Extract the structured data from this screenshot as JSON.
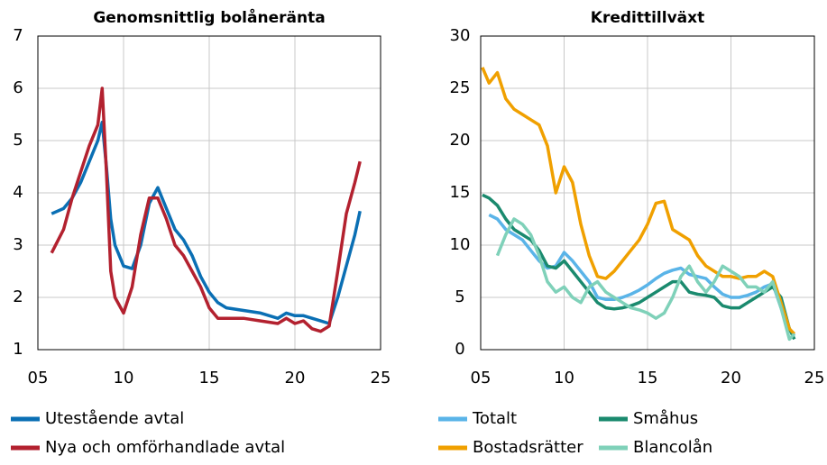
{
  "chart_data": [
    {
      "type": "line",
      "title": "Genomsnittlig bolåneränta",
      "x": [
        5.8,
        6.5,
        7,
        7.5,
        8,
        8.5,
        8.75,
        9,
        9.25,
        9.5,
        10,
        10.5,
        11,
        11.5,
        12,
        12.5,
        13,
        13.5,
        14,
        14.5,
        15,
        15.5,
        16,
        17,
        18,
        19,
        19.5,
        20,
        20.5,
        21,
        21.5,
        22,
        22.5,
        23,
        23.5,
        23.8
      ],
      "series": [
        {
          "name": "Utestående avtal",
          "color": "#0a6fb4",
          "values": [
            3.6,
            3.7,
            3.9,
            4.2,
            4.6,
            5.0,
            5.35,
            4.5,
            3.5,
            3.0,
            2.6,
            2.55,
            3.0,
            3.8,
            4.1,
            3.7,
            3.3,
            3.1,
            2.8,
            2.4,
            2.1,
            1.9,
            1.8,
            1.75,
            1.7,
            1.6,
            1.7,
            1.65,
            1.65,
            1.6,
            1.55,
            1.5,
            2.0,
            2.6,
            3.2,
            3.65
          ]
        },
        {
          "name": "Nya och omförhandlade avtal",
          "color": "#b3212f",
          "values": [
            2.85,
            3.3,
            3.9,
            4.4,
            4.9,
            5.3,
            6.0,
            4.4,
            2.5,
            2.0,
            1.7,
            2.2,
            3.2,
            3.9,
            3.9,
            3.5,
            3.0,
            2.8,
            2.5,
            2.2,
            1.8,
            1.6,
            1.6,
            1.6,
            1.55,
            1.5,
            1.6,
            1.5,
            1.55,
            1.4,
            1.35,
            1.45,
            2.5,
            3.6,
            4.2,
            4.6
          ]
        }
      ],
      "xlim": [
        5,
        25
      ],
      "xticks": [
        {
          "value": 5,
          "label": "05"
        },
        10,
        15,
        20,
        25
      ],
      "ylim": [
        1,
        7
      ],
      "yticks": [
        1,
        2,
        3,
        4,
        5,
        6,
        7
      ],
      "grid": true
    },
    {
      "type": "line",
      "title": "Kredittillväxt",
      "x": [
        5.1,
        5.5,
        6,
        6.5,
        7,
        7.5,
        8,
        8.5,
        9,
        9.5,
        10,
        10.5,
        11,
        11.5,
        12,
        12.5,
        13,
        13.5,
        14,
        14.5,
        15,
        15.5,
        16,
        16.5,
        17,
        17.5,
        18,
        18.5,
        19,
        19.5,
        20,
        20.5,
        21,
        21.5,
        22,
        22.5,
        23,
        23.5,
        23.8
      ],
      "series": [
        {
          "name": "Totalt",
          "color": "#5ab4e8",
          "values": [
            null,
            12.9,
            12.5,
            11.5,
            11,
            10.5,
            9.5,
            8.5,
            7.8,
            8,
            9.3,
            8.5,
            7.5,
            6.5,
            5,
            4.8,
            4.8,
            5,
            5.3,
            5.7,
            6.2,
            6.8,
            7.3,
            7.6,
            7.8,
            7.2,
            7,
            6.8,
            6,
            5.3,
            5,
            5,
            5.2,
            5.5,
            6,
            6.3,
            4,
            2,
            1.3
          ]
        },
        {
          "name": "Småhus",
          "color": "#1a8a6e",
          "values": [
            14.8,
            14.5,
            13.8,
            12.5,
            11.5,
            11,
            10.5,
            9.5,
            8,
            7.8,
            8.5,
            7.5,
            6.5,
            5.5,
            4.5,
            4,
            3.9,
            4,
            4.2,
            4.5,
            5,
            5.5,
            6,
            6.5,
            6.5,
            5.5,
            5.3,
            5.2,
            5,
            4.2,
            4,
            4,
            4.5,
            5,
            5.5,
            6,
            5,
            2,
            1
          ]
        },
        {
          "name": "Bostadsrätter",
          "color": "#f0a000",
          "values": [
            27,
            25.5,
            26.5,
            24,
            23,
            22.5,
            22,
            21.5,
            19.5,
            15,
            17.5,
            16,
            12,
            9,
            7,
            6.8,
            7.5,
            8.5,
            9.5,
            10.5,
            12,
            14,
            14.2,
            11.5,
            11,
            10.5,
            9,
            8,
            7.5,
            7,
            7,
            6.8,
            7,
            7,
            7.5,
            7,
            4.5,
            2,
            1.5
          ]
        },
        {
          "name": "Blancolån",
          "color": "#7fd1b9",
          "values": [
            null,
            null,
            9,
            11,
            12.5,
            12,
            11,
            9,
            6.5,
            5.5,
            6,
            5,
            4.5,
            6,
            6.5,
            5.5,
            5,
            4.5,
            4,
            3.8,
            3.5,
            3,
            3.5,
            5,
            7,
            8,
            6.5,
            5.5,
            6.5,
            8,
            7.5,
            7,
            6,
            6,
            5.5,
            6.5,
            4,
            1,
            1.5
          ]
        }
      ],
      "xlim": [
        5,
        25
      ],
      "xticks": [
        {
          "value": 5,
          "label": "05"
        },
        10,
        15,
        20,
        25
      ],
      "ylim": [
        0,
        30
      ],
      "yticks": [
        0,
        5,
        10,
        15,
        20,
        25,
        30
      ],
      "grid": true
    }
  ]
}
